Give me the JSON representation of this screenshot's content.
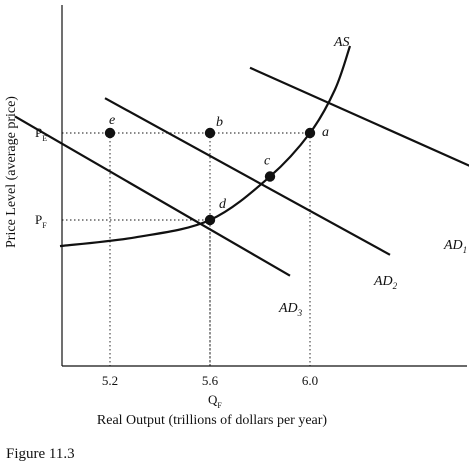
{
  "chart_data": {
    "type": "line",
    "ylabel": "Price Level (average price)",
    "xlabel": "Real Output (trillions of dollars per year)",
    "x_ticks": [
      {
        "x": 5.2,
        "label": "5.2"
      },
      {
        "x": 5.6,
        "label": "5.6"
      },
      {
        "x": 6.0,
        "label": "6.0"
      }
    ],
    "xlim": [
      4.7,
      6.0
    ],
    "price_levels": {
      "PE": 1.0,
      "PF": 0.9
    },
    "y_tick_labels": [
      {
        "text": "P",
        "sub": "E",
        "y": 1.0
      },
      {
        "text": "P",
        "sub": "F",
        "y": 0.9
      }
    ],
    "x_sub_label": {
      "text": "Q",
      "sub": "F"
    },
    "series": [
      {
        "name": "AS",
        "label": {
          "text": "AS",
          "sub": ""
        },
        "kind": "supply",
        "points": [
          [
            5.0,
            0.87
          ],
          [
            5.3,
            0.88
          ],
          [
            5.6,
            0.9
          ],
          [
            5.84,
            0.95
          ],
          [
            6.0,
            1.0
          ],
          [
            6.1,
            1.05
          ],
          [
            6.16,
            1.1
          ]
        ]
      },
      {
        "name": "AD1",
        "label": {
          "text": "AD",
          "sub": "1"
        },
        "kind": "demand",
        "points": [
          [
            5.76,
            1.075
          ],
          [
            7.28,
            0.88
          ]
        ]
      },
      {
        "name": "AD2",
        "label": {
          "text": "AD",
          "sub": "2"
        },
        "kind": "demand",
        "points": [
          [
            5.18,
            1.04
          ],
          [
            6.32,
            0.86
          ]
        ]
      },
      {
        "name": "AD3",
        "label": {
          "text": "AD",
          "sub": "3"
        },
        "kind": "demand",
        "points": [
          [
            4.82,
            1.019
          ],
          [
            5.92,
            0.836
          ]
        ]
      }
    ],
    "points": [
      {
        "label": "a",
        "x": 6.0,
        "y": 1.0
      },
      {
        "label": "b",
        "x": 5.6,
        "y": 1.0
      },
      {
        "label": "c",
        "x": 5.84,
        "y": 0.95
      },
      {
        "label": "d",
        "x": 5.6,
        "y": 0.9
      },
      {
        "label": "e",
        "x": 5.2,
        "y": 1.0
      }
    ],
    "dotted_guides": true
  },
  "caption": "Figure 11.3"
}
